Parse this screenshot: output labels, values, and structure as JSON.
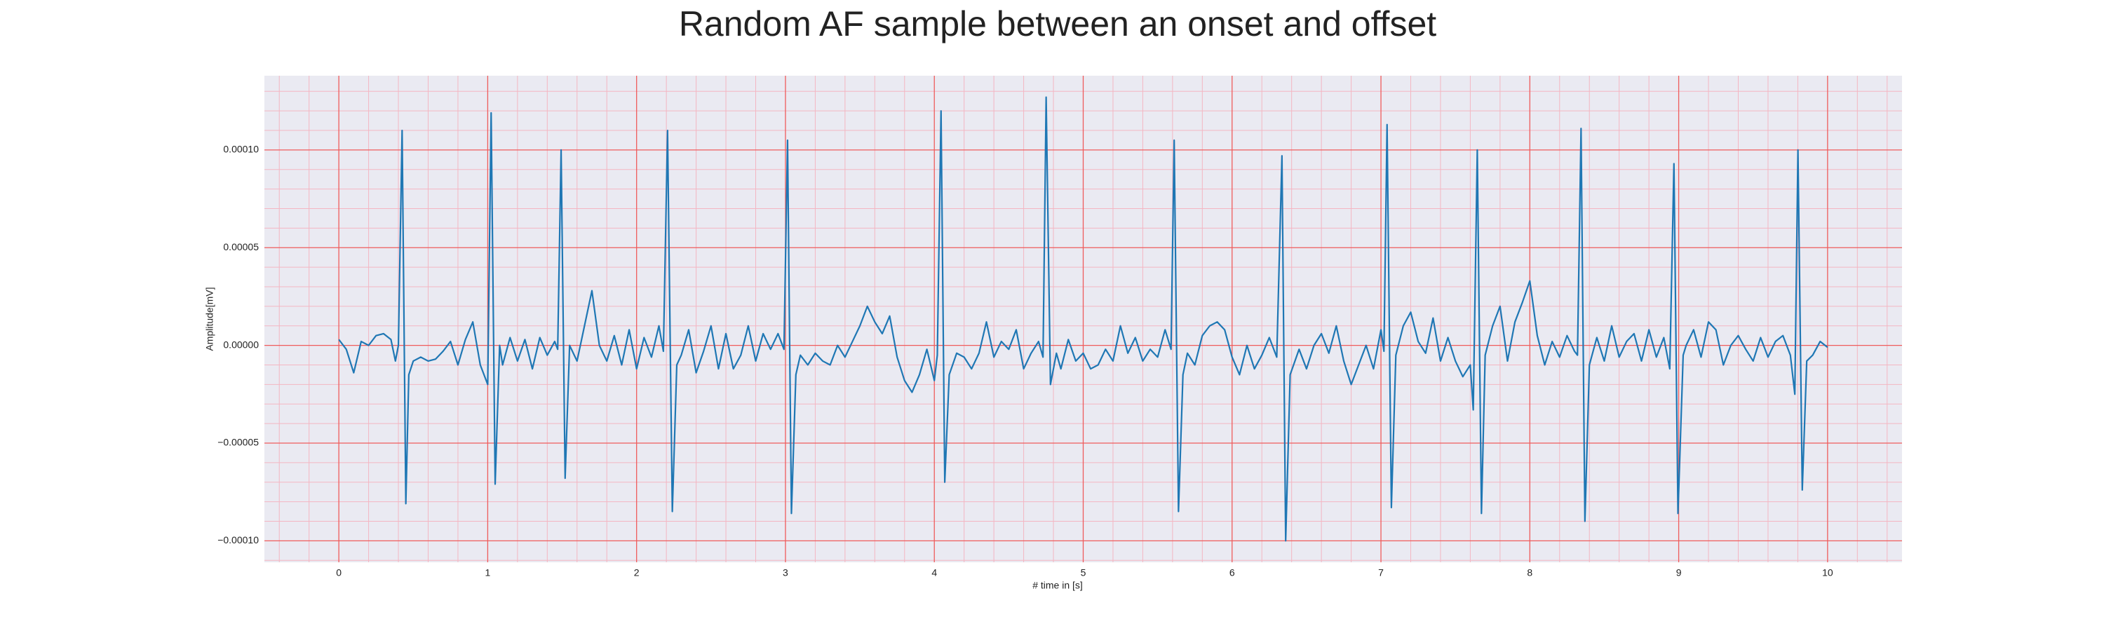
{
  "chart_data": {
    "type": "line",
    "title": "Random AF sample between an onset and offset",
    "xlabel": "# time in [s]",
    "ylabel": "Amplitude[mV]",
    "color": "#1f77b4",
    "grid": true,
    "xlim": [
      -0.5,
      10.5
    ],
    "ylim": [
      -0.000111,
      0.000138
    ],
    "xticks": [
      0,
      1,
      2,
      3,
      4,
      5,
      6,
      7,
      8,
      9,
      10
    ],
    "yticks": [
      {
        "value": -0.0001,
        "label": "−0.00010"
      },
      {
        "value": -5e-05,
        "label": "−0.00005"
      },
      {
        "value": 0,
        "label": "0.00000"
      },
      {
        "value": 5e-05,
        "label": "0.00005"
      },
      {
        "value": 0.0001,
        "label": "0.00010"
      }
    ],
    "xminorticks": [
      -0.4,
      -0.2,
      0.2,
      0.4,
      0.6,
      0.8,
      1.2,
      1.4,
      1.6,
      1.8,
      2.2,
      2.4,
      2.6,
      2.8,
      3.2,
      3.4,
      3.6,
      3.8,
      4.2,
      4.4,
      4.6,
      4.8,
      5.2,
      5.4,
      5.6,
      5.8,
      6.2,
      6.4,
      6.6,
      6.8,
      7.2,
      7.4,
      7.6,
      7.8,
      8.2,
      8.4,
      8.6,
      8.8,
      9.2,
      9.4,
      9.6,
      9.8,
      10.2,
      10.4
    ],
    "yminorticks": [
      -0.00011,
      -9e-05,
      -8e-05,
      -7e-05,
      -6e-05,
      -4e-05,
      -3e-05,
      -2e-05,
      -1e-05,
      1e-05,
      2e-05,
      3e-05,
      4e-05,
      6e-05,
      7e-05,
      8e-05,
      9e-05,
      0.00011,
      0.00012,
      0.00013
    ],
    "x": [
      0,
      0.05,
      0.1,
      0.15,
      0.2,
      0.25,
      0.3,
      0.35,
      0.38,
      0.4,
      0.425,
      0.45,
      0.47,
      0.5,
      0.55,
      0.6,
      0.65,
      0.7,
      0.75,
      0.8,
      0.85,
      0.9,
      0.95,
      1,
      1.023,
      1.05,
      1.08,
      1.1,
      1.15,
      1.2,
      1.25,
      1.3,
      1.35,
      1.4,
      1.45,
      1.47,
      1.493,
      1.52,
      1.55,
      1.6,
      1.65,
      1.7,
      1.75,
      1.8,
      1.85,
      1.9,
      1.95,
      2,
      2.05,
      2.1,
      2.15,
      2.18,
      2.208,
      2.24,
      2.27,
      2.3,
      2.35,
      2.4,
      2.45,
      2.5,
      2.55,
      2.6,
      2.65,
      2.7,
      2.75,
      2.8,
      2.85,
      2.9,
      2.95,
      2.99,
      3.014,
      3.04,
      3.07,
      3.1,
      3.15,
      3.2,
      3.25,
      3.3,
      3.35,
      3.4,
      3.45,
      3.5,
      3.55,
      3.6,
      3.65,
      3.7,
      3.75,
      3.8,
      3.85,
      3.9,
      3.95,
      4,
      4.02,
      4.045,
      4.07,
      4.1,
      4.15,
      4.2,
      4.25,
      4.3,
      4.35,
      4.4,
      4.45,
      4.5,
      4.55,
      4.6,
      4.65,
      4.7,
      4.73,
      4.751,
      4.78,
      4.82,
      4.85,
      4.9,
      4.95,
      5,
      5.05,
      5.1,
      5.15,
      5.2,
      5.25,
      5.3,
      5.35,
      5.4,
      5.45,
      5.5,
      5.55,
      5.59,
      5.611,
      5.64,
      5.67,
      5.7,
      5.75,
      5.8,
      5.85,
      5.9,
      5.95,
      6,
      6.05,
      6.1,
      6.15,
      6.2,
      6.25,
      6.3,
      6.335,
      6.36,
      6.39,
      6.45,
      6.5,
      6.55,
      6.6,
      6.65,
      6.7,
      6.75,
      6.8,
      6.85,
      6.9,
      6.95,
      7,
      7.02,
      7.041,
      7.07,
      7.1,
      7.15,
      7.2,
      7.25,
      7.3,
      7.35,
      7.4,
      7.45,
      7.5,
      7.55,
      7.6,
      7.62,
      7.647,
      7.675,
      7.7,
      7.75,
      7.8,
      7.85,
      7.9,
      7.95,
      8,
      8.05,
      8.1,
      8.15,
      8.2,
      8.25,
      8.3,
      8.32,
      8.344,
      8.37,
      8.4,
      8.45,
      8.5,
      8.55,
      8.6,
      8.65,
      8.7,
      8.75,
      8.8,
      8.85,
      8.9,
      8.94,
      8.968,
      8.995,
      9.03,
      9.05,
      9.1,
      9.15,
      9.2,
      9.25,
      9.3,
      9.35,
      9.4,
      9.45,
      9.5,
      9.55,
      9.6,
      9.65,
      9.7,
      9.75,
      9.78,
      9.801,
      9.83,
      9.86,
      9.9,
      9.95,
      10
    ],
    "values": [
      3e-06,
      -2e-06,
      -1.4e-05,
      2e-06,
      0,
      5e-06,
      6e-06,
      3e-06,
      -8e-06,
      0,
      0.00011,
      -8.1e-05,
      -1.5e-05,
      -8e-06,
      -6e-06,
      -8e-06,
      -7e-06,
      -3e-06,
      2e-06,
      -1e-05,
      3e-06,
      1.2e-05,
      -1e-05,
      -2e-05,
      0.000119,
      -7.1e-05,
      0,
      -1e-05,
      4e-06,
      -8e-06,
      3e-06,
      -1.2e-05,
      4e-06,
      -5e-06,
      2e-06,
      -2e-06,
      0.0001,
      -6.8e-05,
      0,
      -8e-06,
      1e-05,
      2.8e-05,
      0,
      -8e-06,
      5e-06,
      -1e-05,
      8e-06,
      -1.2e-05,
      4e-06,
      -6e-06,
      1e-05,
      -3e-06,
      0.00011,
      -8.5e-05,
      -1e-05,
      -5e-06,
      8e-06,
      -1.4e-05,
      -3e-06,
      1e-05,
      -1.2e-05,
      6e-06,
      -1.2e-05,
      -5e-06,
      1e-05,
      -8e-06,
      6e-06,
      -2e-06,
      6e-06,
      -2e-06,
      0.000105,
      -8.6e-05,
      -1.5e-05,
      -5e-06,
      -1e-05,
      -4e-06,
      -8e-06,
      -1e-05,
      0,
      -6e-06,
      2e-06,
      1e-05,
      2e-05,
      1.2e-05,
      6e-06,
      1.5e-05,
      -6e-06,
      -1.8e-05,
      -2.4e-05,
      -1.5e-05,
      -2e-06,
      -1.8e-05,
      -5e-06,
      0.00012,
      -7e-05,
      -1.5e-05,
      -4e-06,
      -6e-06,
      -1.2e-05,
      -4e-06,
      1.2e-05,
      -6e-06,
      2e-06,
      -2e-06,
      8e-06,
      -1.2e-05,
      -4e-06,
      2e-06,
      -6e-06,
      0.000127,
      -2e-05,
      -4e-06,
      -1.2e-05,
      3e-06,
      -8e-06,
      -4e-06,
      -1.2e-05,
      -1e-05,
      -2e-06,
      -8e-06,
      1e-05,
      -4e-06,
      4e-06,
      -8e-06,
      -2e-06,
      -6e-06,
      8e-06,
      -2e-06,
      0.000105,
      -8.5e-05,
      -1.5e-05,
      -4e-06,
      -1e-05,
      5e-06,
      1e-05,
      1.2e-05,
      8e-06,
      -6e-06,
      -1.5e-05,
      0,
      -1.2e-05,
      -5e-06,
      4e-06,
      -6e-06,
      9.7e-05,
      -0.0001,
      -1.5e-05,
      -2e-06,
      -1.2e-05,
      0,
      6e-06,
      -4e-06,
      1e-05,
      -8e-06,
      -2e-05,
      -1e-05,
      0,
      -1.2e-05,
      8e-06,
      -3e-06,
      0.000113,
      -8.3e-05,
      -5e-06,
      1e-05,
      1.7e-05,
      2e-06,
      -4e-06,
      1.4e-05,
      -8e-06,
      4e-06,
      -8e-06,
      -1.6e-05,
      -1e-05,
      -3.3e-05,
      0.0001,
      -8.6e-05,
      -5e-06,
      1e-05,
      2e-05,
      -8e-06,
      1.2e-05,
      2.2e-05,
      3.3e-05,
      5e-06,
      -1e-05,
      2e-06,
      -6e-06,
      5e-06,
      -3e-06,
      -5e-06,
      0.000111,
      -9e-05,
      -1e-05,
      4e-06,
      -8e-06,
      1e-05,
      -6e-06,
      2e-06,
      6e-06,
      -8e-06,
      8e-06,
      -6e-06,
      4e-06,
      -1.2e-05,
      9.3e-05,
      -8.6e-05,
      -5e-06,
      0,
      8e-06,
      -6e-06,
      1.2e-05,
      8e-06,
      -1e-05,
      0,
      5e-06,
      -2e-06,
      -8e-06,
      4e-06,
      -6e-06,
      2e-06,
      5e-06,
      -5e-06,
      -2.5e-05,
      0.0001,
      -7.4e-05,
      -8e-06,
      -5e-06,
      2e-06,
      -1e-06
    ]
  }
}
